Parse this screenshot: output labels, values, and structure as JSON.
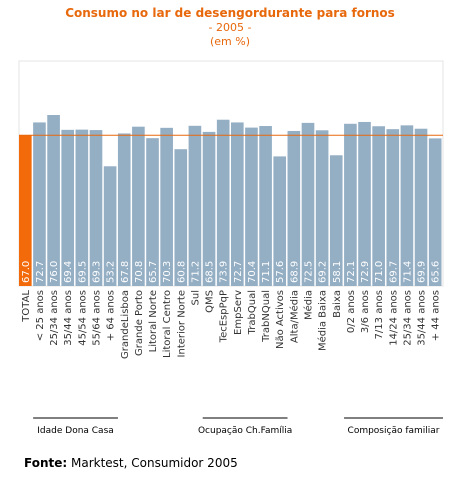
{
  "chart_data": {
    "type": "bar",
    "title": "Consumo no lar de desengordurante para fornos",
    "subtitle_year": "- 2005 -",
    "subtitle_unit": "(em %)",
    "categories": [
      "TOTAL",
      "< 25 anos",
      "25/34 anos",
      "35/44 anos",
      "45/54 anos",
      "55/64 anos",
      "+ 64 anos",
      "GrandeLisboa",
      "Grande Porto",
      "Litoral Norte",
      "Litoral Centro",
      "Interior Norte",
      "Sul",
      "QMS",
      "TecEspPqP",
      "EmpServ",
      "TrabQual",
      "TrabNQual",
      "Não Activos",
      "Alta/Média",
      "Média",
      "Média Baixa",
      "Baixa",
      "0/2 anos",
      "3/6 anos",
      "7/13 anos",
      "14/24 anos",
      "25/34 anos",
      "35/44 anos",
      "+ 44 anos"
    ],
    "values": [
      67.0,
      72.7,
      76.0,
      69.4,
      69.5,
      69.3,
      53.2,
      67.8,
      70.8,
      65.7,
      70.3,
      60.8,
      71.2,
      68.5,
      73.9,
      72.7,
      70.4,
      71.1,
      57.6,
      68.9,
      72.5,
      69.2,
      58.1,
      72.1,
      72.9,
      71.0,
      69.7,
      71.4,
      69.9,
      65.6
    ],
    "value_labels": [
      "67.0",
      "72.7",
      "76.0",
      "69.4",
      "69.5",
      "69.3",
      "53.2",
      "67.8",
      "70.8",
      "65.7",
      "70.3",
      "60.8",
      "71.2",
      "68.5",
      "73.9",
      "72.7",
      "70.4",
      "71.1",
      "57.6",
      "68.9",
      "72.5",
      "69.2",
      "58.1",
      "72.1",
      "72.9",
      "71.0",
      "69.7",
      "71.4",
      "69.9",
      "65.6"
    ],
    "ylim": [
      0,
      100
    ],
    "reference_line": 67.0,
    "groups": [
      {
        "label": "Idade Dona Casa",
        "start": 1,
        "end": 6
      },
      {
        "label": "Ocupação Ch.Família",
        "start": 13,
        "end": 18
      },
      {
        "label": "Composição familiar",
        "start": 23,
        "end": 29
      }
    ],
    "colors": {
      "total_bar": "#f26a0a",
      "bar": "#94aec4",
      "reference_line": "#e8680c",
      "title": "#e8680c"
    },
    "grid": false
  },
  "source": {
    "label": "Fonte:",
    "text": "Marktest, Consumidor 2005"
  }
}
